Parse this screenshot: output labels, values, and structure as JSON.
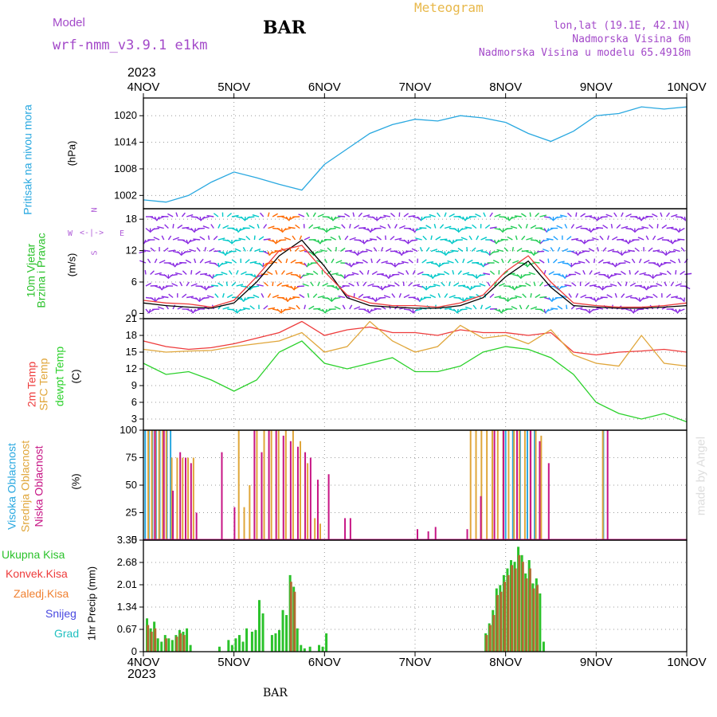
{
  "header": {
    "model_label": "Model",
    "model_name": "wrf-nmm_v3.9.1 e1km",
    "station": "BAR",
    "title": "Meteogram",
    "coords": "lon,lat (19.1E, 42.1N)",
    "altitude": "Nadmorska Visina 6m",
    "model_altitude": "Nadmorska Visina u modelu 65.4918m"
  },
  "footer": {
    "station": "BAR",
    "credit": "made by Angel"
  },
  "colors": {
    "pressure": "#29a8e0",
    "temp2m": "#ee3b3b",
    "sfc": "#e0a63a",
    "dewpt": "#2bd12b",
    "high_cloud": "#29a8e0",
    "mid_cloud": "#e0a63a",
    "low_cloud": "#c71585",
    "precip_total": "#2bc22b",
    "precip_conv": "#ee3b3b",
    "precip_frozen": "#f08030",
    "snow": "#4848e0",
    "hail": "#20c0c0",
    "wind_label": "#2bc22b",
    "compass": "#b05dd8"
  },
  "time_axis": {
    "year": "2023",
    "ticks": [
      "4NOV",
      "5NOV",
      "6NOV",
      "7NOV",
      "8NOV",
      "9NOV",
      "10NOV"
    ]
  },
  "chart_data": [
    {
      "type": "line",
      "name": "pressure",
      "ylabel_lines": [
        "Pritisak na nivou mora",
        "(hPa)"
      ],
      "ylim": [
        999,
        1024
      ],
      "yticks": [
        "1002",
        "1008",
        "1014",
        "1020"
      ],
      "grid": true,
      "x_day": [
        0,
        0.25,
        0.5,
        0.75,
        1.0,
        1.25,
        1.5,
        1.75,
        2.0,
        2.25,
        2.5,
        2.75,
        3.0,
        3.25,
        3.5,
        3.75,
        4.0,
        4.25,
        4.5,
        4.75,
        5.0,
        5.25,
        5.5,
        5.75,
        6.0
      ],
      "series": [
        {
          "values": [
            1001,
            1000.5,
            1002,
            1005,
            1007.3,
            1006,
            1004.5,
            1003.2,
            1009,
            1012.5,
            1016,
            1018,
            1019.2,
            1018.8,
            1020,
            1019.5,
            1018.5,
            1016,
            1014.2,
            1016.5,
            1020,
            1020.5,
            1022,
            1021.5,
            1022
          ]
        }
      ]
    },
    {
      "type": "line",
      "name": "wind",
      "ylabel_lines": [
        "10m Vjetar",
        "Brzina i Pravac",
        "(m/s)"
      ],
      "compass": [
        "N",
        "W",
        "E",
        "S"
      ],
      "ylim": [
        -1,
        20
      ],
      "yticks": [
        "0",
        "6",
        "12",
        "18"
      ],
      "grid": true,
      "x_day": [
        0,
        0.25,
        0.5,
        0.75,
        1.0,
        1.25,
        1.5,
        1.75,
        2.0,
        2.25,
        2.5,
        2.75,
        3.0,
        3.25,
        3.5,
        3.75,
        4.0,
        4.25,
        4.5,
        4.75,
        5.0,
        5.25,
        5.5,
        5.75,
        6.0
      ],
      "series": [
        {
          "values": [
            2,
            1.5,
            1.2,
            1,
            2,
            6,
            11,
            14,
            9,
            3,
            1.5,
            1.2,
            1,
            1,
            1.5,
            3,
            7,
            10,
            5,
            1.5,
            1.2,
            1,
            1,
            1.2,
            1.5
          ]
        },
        {
          "values": [
            2.5,
            2,
            1.8,
            1.2,
            2.5,
            7,
            12,
            13,
            8,
            3.5,
            2,
            1.5,
            1.5,
            1.2,
            2,
            3.5,
            8,
            11,
            6,
            2,
            1.5,
            1.2,
            1.2,
            1.5,
            2
          ]
        }
      ]
    },
    {
      "type": "line",
      "name": "temperature",
      "ylabel_lines": [
        "2m Temp",
        "SFC Temp",
        "dewpt Temp",
        "(C)"
      ],
      "ylim": [
        1,
        21
      ],
      "yticks": [
        "3",
        "6",
        "9",
        "12",
        "15",
        "18",
        "21"
      ],
      "grid": true,
      "x_day": [
        0,
        0.25,
        0.5,
        0.75,
        1.0,
        1.25,
        1.5,
        1.75,
        2.0,
        2.25,
        2.5,
        2.75,
        3.0,
        3.25,
        3.5,
        3.75,
        4.0,
        4.25,
        4.5,
        4.75,
        5.0,
        5.25,
        5.5,
        5.75,
        6.0
      ],
      "series": [
        {
          "name": "2m Temp",
          "values": [
            17,
            16,
            15.5,
            15.8,
            16.5,
            17.5,
            18.5,
            20.5,
            18,
            19,
            19.5,
            18.5,
            18.5,
            18,
            19,
            18.5,
            18.5,
            18,
            18.5,
            15,
            14.5,
            15,
            15.2,
            15.5,
            15
          ]
        },
        {
          "name": "SFC Temp",
          "values": [
            15.5,
            15,
            15.2,
            15.3,
            16,
            16.5,
            17,
            18.5,
            15,
            16,
            20.5,
            17,
            15,
            16,
            19.8,
            17.5,
            18,
            16.5,
            19,
            14.5,
            13,
            12.5,
            18,
            13,
            12.5
          ]
        },
        {
          "name": "dewpt Temp",
          "values": [
            13,
            11,
            11.5,
            10,
            8,
            10,
            15,
            17,
            13,
            12,
            13,
            14,
            11.5,
            11.5,
            12.5,
            15,
            16,
            15.5,
            14,
            11,
            6,
            4,
            3,
            4,
            2.5
          ]
        }
      ]
    },
    {
      "type": "bar",
      "name": "clouds",
      "ylabel_lines": [
        "Visoka Oblacnost",
        "Srednja Oblacnost",
        "Niska Oblacnost",
        "(%)"
      ],
      "ylim": [
        0,
        100
      ],
      "yticks": [
        "0",
        "25",
        "50",
        "75",
        "100"
      ],
      "grid": true,
      "series": [
        {
          "name": "Visoka Oblacnost",
          "x_day": [
            0.02,
            0.06,
            0.1,
            0.14,
            0.18,
            0.22,
            0.26,
            0.3,
            4.0,
            4.08,
            4.16,
            4.24,
            4.32,
            5.08
          ],
          "values": [
            100,
            100,
            100,
            100,
            100,
            100,
            100,
            100,
            100,
            100,
            100,
            100,
            100,
            100
          ]
        },
        {
          "name": "Srednja Oblacnost",
          "x_day": [
            0.04,
            0.08,
            0.12,
            0.16,
            0.2,
            0.24,
            0.3,
            0.36,
            0.42,
            0.48,
            0.54,
            1.04,
            1.1,
            1.16,
            1.24,
            1.32,
            1.4,
            1.48,
            1.56,
            1.64,
            1.72,
            1.8,
            1.88,
            1.94,
            3.6,
            3.66,
            3.72,
            3.78,
            3.84,
            3.9,
            3.96,
            4.02,
            4.08,
            4.14,
            4.2,
            4.26,
            4.32,
            4.38,
            5.06
          ],
          "values": [
            100,
            100,
            100,
            100,
            100,
            100,
            75,
            75,
            75,
            75,
            75,
            100,
            30,
            50,
            100,
            100,
            100,
            100,
            100,
            100,
            90,
            70,
            20,
            15,
            100,
            100,
            100,
            100,
            100,
            100,
            100,
            100,
            100,
            100,
            100,
            100,
            100,
            95,
            100
          ]
        },
        {
          "name": "Niska Oblacnost",
          "x_day": [
            0.1,
            0.2,
            0.3,
            0.38,
            0.44,
            0.5,
            0.56,
            0.84,
            0.98,
            1.2,
            1.28,
            1.36,
            1.44,
            1.52,
            1.6,
            1.68,
            1.76,
            1.82,
            1.9,
            2.02,
            2.2,
            2.26,
            3.0,
            3.12,
            3.2,
            3.55,
            3.7,
            3.85,
            3.95,
            4.1,
            4.25,
            4.35,
            4.45,
            5.1
          ],
          "values": [
            100,
            100,
            45,
            80,
            75,
            70,
            25,
            80,
            30,
            100,
            80,
            100,
            100,
            95,
            90,
            85,
            80,
            75,
            55,
            60,
            20,
            20,
            10,
            8,
            12,
            10,
            40,
            100,
            100,
            100,
            100,
            90,
            70,
            100
          ]
        }
      ]
    },
    {
      "type": "bar",
      "name": "precipitation",
      "legend": [
        "Ukupna Kisa",
        "Konvek.Kisa",
        "Zaledj.Kisa",
        "Snijeg",
        "Grad"
      ],
      "ylabel_lines": [
        "1hr Precip (mm)"
      ],
      "ylim": [
        0,
        3.35
      ],
      "yticks": [
        "0",
        "0.67",
        "1.34",
        "2.01",
        "2.68",
        "3.35"
      ],
      "grid": true,
      "series": [
        {
          "name": "Ukupna Kisa",
          "x_day": [
            0.04,
            0.08,
            0.12,
            0.16,
            0.2,
            0.24,
            0.28,
            0.32,
            0.36,
            0.4,
            0.44,
            0.48,
            0.52,
            0.84,
            0.94,
            0.98,
            1.02,
            1.06,
            1.1,
            1.14,
            1.2,
            1.24,
            1.28,
            1.32,
            1.42,
            1.46,
            1.5,
            1.54,
            1.58,
            1.62,
            1.66,
            1.7,
            1.74,
            1.78,
            1.84,
            1.94,
            1.98,
            2.02,
            3.78,
            3.82,
            3.86,
            3.9,
            3.94,
            3.98,
            4.02,
            4.06,
            4.1,
            4.14,
            4.18,
            4.22,
            4.26,
            4.3,
            4.34,
            4.38,
            4.42
          ],
          "values": [
            1.0,
            0.7,
            0.9,
            0.4,
            0.3,
            0.5,
            0.4,
            0.35,
            0.5,
            0.65,
            0.6,
            0.7,
            0.2,
            0.15,
            0.35,
            0.2,
            0.4,
            0.5,
            0.3,
            0.7,
            0.6,
            0.65,
            1.55,
            1.15,
            0.5,
            0.55,
            0.65,
            1.25,
            1.1,
            2.3,
            1.95,
            0.7,
            0.2,
            0.1,
            0.15,
            0.2,
            0.15,
            0.55,
            0.55,
            0.85,
            1.25,
            1.9,
            2.0,
            2.3,
            2.5,
            2.75,
            2.7,
            3.15,
            2.9,
            2.35,
            2.75,
            2.05,
            2.2,
            1.75,
            0.3
          ]
        },
        {
          "name": "Konvek.Kisa",
          "x_day": [
            0.05,
            0.09,
            0.13,
            0.25,
            0.37,
            0.41,
            0.45,
            1.63,
            1.67,
            3.79,
            3.83,
            3.87,
            3.91,
            3.95,
            3.99,
            4.03,
            4.07,
            4.11,
            4.15,
            4.19,
            4.23,
            4.27,
            4.31,
            4.35
          ],
          "values": [
            0.8,
            0.6,
            0.7,
            0.4,
            0.45,
            0.55,
            0.5,
            2.1,
            1.8,
            0.5,
            0.8,
            1.1,
            1.7,
            1.8,
            2.1,
            2.3,
            2.6,
            2.5,
            2.9,
            2.7,
            2.2,
            2.5,
            1.9,
            2.0
          ]
        }
      ]
    }
  ]
}
